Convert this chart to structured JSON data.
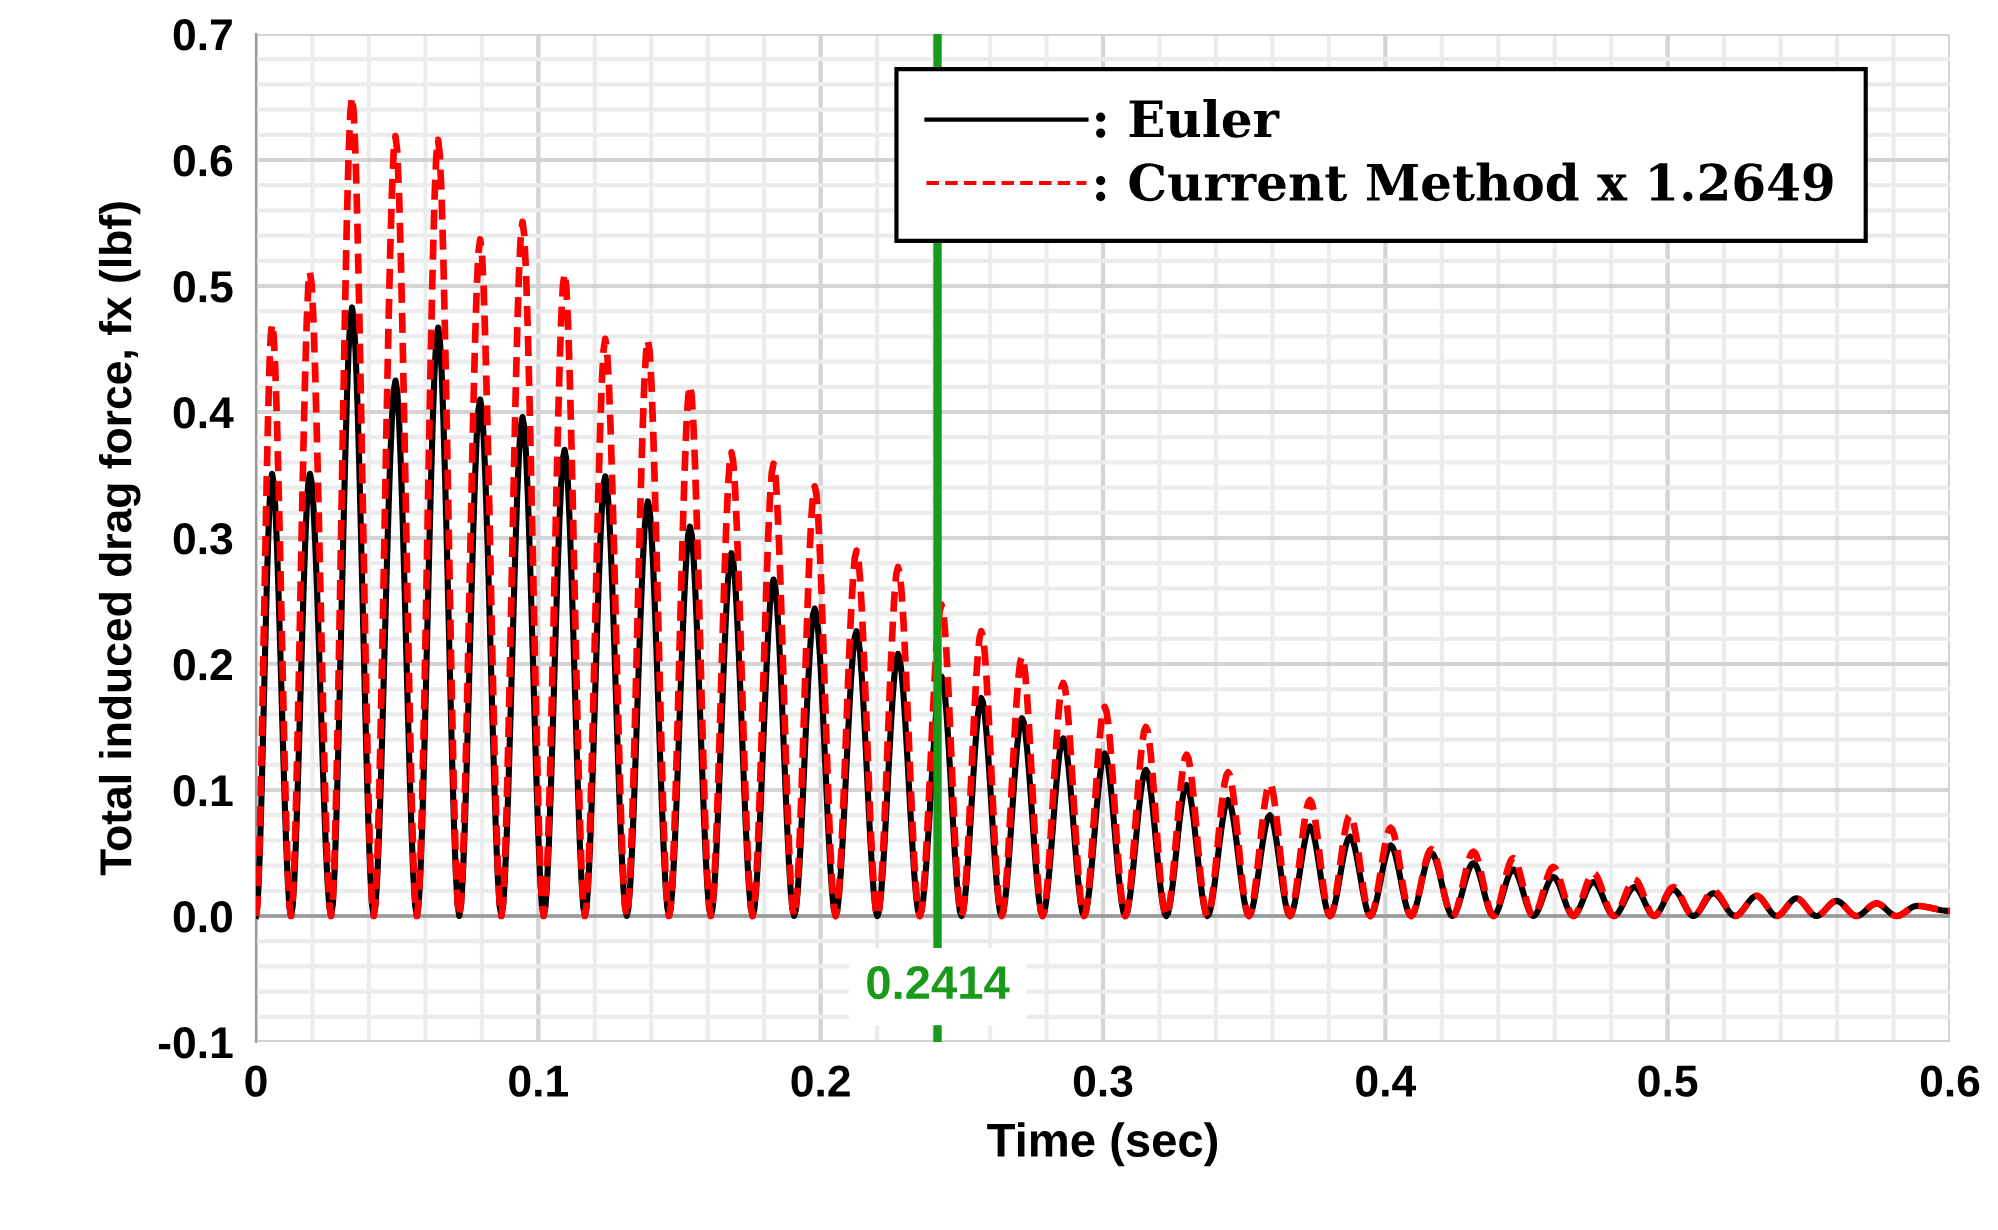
{
  "chart_data": {
    "type": "line",
    "xlabel": "Time (sec)",
    "ylabel": "Total induced drag force, fx (lbf)",
    "xlim": [
      0,
      0.6
    ],
    "xticks": [
      0,
      0.1,
      0.2,
      0.3,
      0.4,
      0.5,
      0.6
    ],
    "ylim": [
      -0.1,
      0.7
    ],
    "yticks": [
      {
        "value": -0.1,
        "label": "-0.1"
      },
      {
        "value": 0,
        "label": "0.0"
      },
      {
        "value": 0.1,
        "label": "0.1"
      },
      {
        "value": 0.2,
        "label": "0.2"
      },
      {
        "value": 0.3,
        "label": "0.3"
      },
      {
        "value": 0.4,
        "label": "0.4"
      },
      {
        "value": 0.5,
        "label": "0.5"
      },
      {
        "value": 0.6,
        "label": "0.6"
      },
      {
        "value": 0.7,
        "label": "0.7"
      }
    ],
    "grid": true,
    "legend": "top right",
    "marker": "none",
    "ref_lines": [
      {
        "axis": "x",
        "value": 0.2414,
        "label": "0.2414",
        "color": "#1a9a1a",
        "line_style": "solid"
      }
    ],
    "series": [
      {
        "name": ": Euler",
        "color": "#000000",
        "line_style": "solid",
        "x": [
          0,
          0.0057,
          0.0124,
          0.0191,
          0.0266,
          0.034,
          0.0417,
          0.0494,
          0.057,
          0.0645,
          0.072,
          0.0794,
          0.0869,
          0.0944,
          0.1019,
          0.1093,
          0.1165,
          0.1237,
          0.1313,
          0.1388,
          0.1463,
          0.1537,
          0.1611,
          0.1684,
          0.1759,
          0.1833,
          0.1906,
          0.1979,
          0.2053,
          0.2127,
          0.2201,
          0.2274,
          0.2351,
          0.2428,
          0.2499,
          0.2569,
          0.2641,
          0.2713,
          0.2786,
          0.2859,
          0.2933,
          0.3006,
          0.3079,
          0.3152,
          0.3224,
          0.3296,
          0.337,
          0.3443,
          0.3517,
          0.3591,
          0.3662,
          0.3733,
          0.3804,
          0.3875,
          0.3947,
          0.4019,
          0.4091,
          0.4163,
          0.4238,
          0.4312,
          0.4383,
          0.4453,
          0.4524,
          0.4595,
          0.4666,
          0.4737,
          0.481,
          0.4883,
          0.4952,
          0.502,
          0.5091,
          0.5162,
          0.5239,
          0.5315,
          0.5386,
          0.5456,
          0.5527,
          0.5598,
          0.5669,
          0.574,
          0.5811,
          0.5882,
          0.6
        ],
        "values": [
          0,
          0.351,
          0,
          0.351,
          0,
          0.483,
          0,
          0.425,
          0,
          0.467,
          0,
          0.41,
          0,
          0.396,
          0,
          0.37,
          0,
          0.349,
          0,
          0.329,
          0,
          0.309,
          0,
          0.288,
          0,
          0.267,
          0,
          0.244,
          0,
          0.226,
          0,
          0.208,
          0,
          0.19,
          0,
          0.173,
          0,
          0.157,
          0,
          0.141,
          0,
          0.129,
          0,
          0.116,
          0,
          0.104,
          0,
          0.092,
          0,
          0.08,
          0,
          0.071,
          0,
          0.063,
          0,
          0.056,
          0,
          0.05,
          0,
          0.042,
          0,
          0.037,
          0,
          0.031,
          0,
          0.027,
          0,
          0.023,
          0,
          0.021,
          0,
          0.018,
          0,
          0.016,
          0,
          0.014,
          0,
          0.012,
          0,
          0.01,
          0,
          0.008,
          0.004
        ]
      },
      {
        "name": ": Current Method x 1.2649",
        "color": "#ff0000",
        "line_style": "dashed",
        "x": [
          0,
          0.0057,
          0.0124,
          0.0191,
          0.0266,
          0.034,
          0.0417,
          0.0494,
          0.057,
          0.0645,
          0.072,
          0.0794,
          0.0869,
          0.0944,
          0.1019,
          0.1093,
          0.1165,
          0.1237,
          0.1313,
          0.1388,
          0.1463,
          0.1537,
          0.1611,
          0.1684,
          0.1759,
          0.1833,
          0.1906,
          0.1979,
          0.2053,
          0.2127,
          0.2201,
          0.2274,
          0.2351,
          0.2428,
          0.2499,
          0.2569,
          0.2641,
          0.2713,
          0.2786,
          0.2859,
          0.2933,
          0.3006,
          0.3079,
          0.3152,
          0.3224,
          0.3296,
          0.337,
          0.3443,
          0.3517,
          0.3591,
          0.3662,
          0.3733,
          0.3804,
          0.3875,
          0.3947,
          0.4019,
          0.4091,
          0.4163,
          0.4238,
          0.4312,
          0.4383,
          0.4453,
          0.4524,
          0.4595,
          0.4666,
          0.4737,
          0.481,
          0.4883,
          0.4952,
          0.502,
          0.5091,
          0.5162,
          0.5239,
          0.5315,
          0.5386,
          0.5456,
          0.5527,
          0.5598,
          0.5669,
          0.574,
          0.5811,
          0.5882,
          0.6
        ],
        "values": [
          0,
          0.47,
          0,
          0.511,
          0,
          0.65,
          0,
          0.619,
          0,
          0.616,
          0,
          0.537,
          0,
          0.551,
          0,
          0.51,
          0,
          0.458,
          0,
          0.457,
          0,
          0.421,
          0,
          0.368,
          0,
          0.359,
          0,
          0.341,
          0,
          0.29,
          0,
          0.277,
          0,
          0.247,
          0,
          0.226,
          0,
          0.206,
          0,
          0.185,
          0,
          0.166,
          0,
          0.15,
          0,
          0.128,
          0,
          0.114,
          0,
          0.105,
          0,
          0.092,
          0,
          0.08,
          0,
          0.07,
          0,
          0.053,
          0,
          0.051,
          0,
          0.046,
          0,
          0.039,
          0,
          0.034,
          0,
          0.029,
          0,
          0.023,
          0,
          0.02,
          0,
          0.016,
          0,
          0.014,
          0,
          0.012,
          0,
          0.01,
          0,
          0.008,
          0.004
        ]
      }
    ]
  }
}
